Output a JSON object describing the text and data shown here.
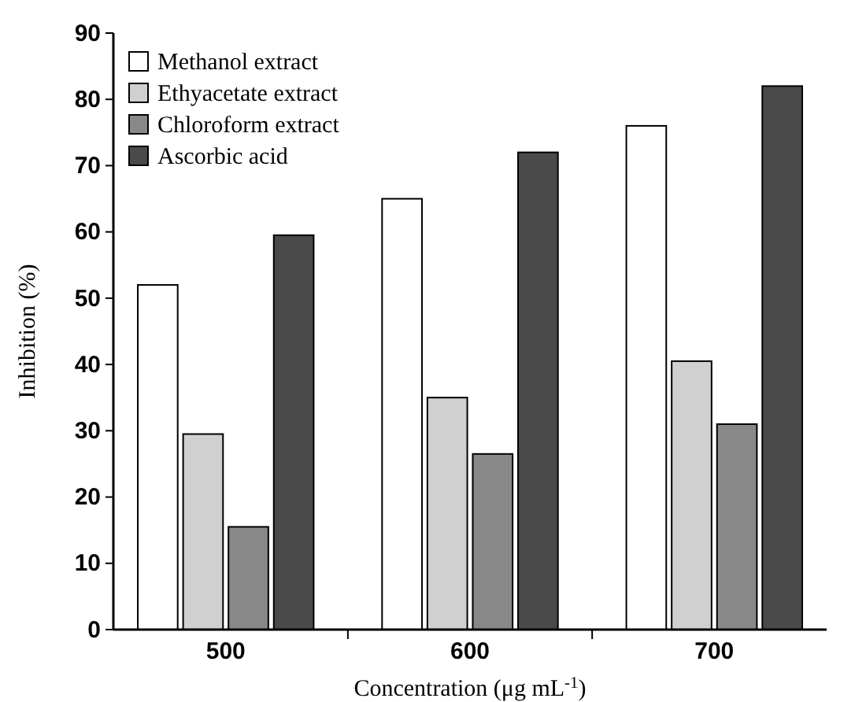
{
  "chart_data": {
    "type": "bar",
    "xlabel": "Concentration (μg mL$^{-1}$)",
    "ylabel": "Inhibition (%)",
    "categories": [
      "500",
      "600",
      "700"
    ],
    "series": [
      {
        "name": "Methanol extract",
        "color": "#ffffff",
        "values": [
          52,
          65,
          76
        ]
      },
      {
        "name": "Ethyacetate extract",
        "color": "#d0d0d0",
        "values": [
          29.5,
          35,
          40.5
        ]
      },
      {
        "name": "Chloroform extract",
        "color": "#888888",
        "values": [
          15.5,
          26.5,
          31
        ]
      },
      {
        "name": "Ascorbic acid",
        "color": "#4a4a4a",
        "values": [
          59.5,
          72,
          82
        ]
      }
    ],
    "ylim": [
      0,
      90
    ],
    "yticks": [
      0,
      10,
      20,
      30,
      40,
      50,
      60,
      70,
      80,
      90
    ],
    "grid": false,
    "legend": "top left"
  }
}
